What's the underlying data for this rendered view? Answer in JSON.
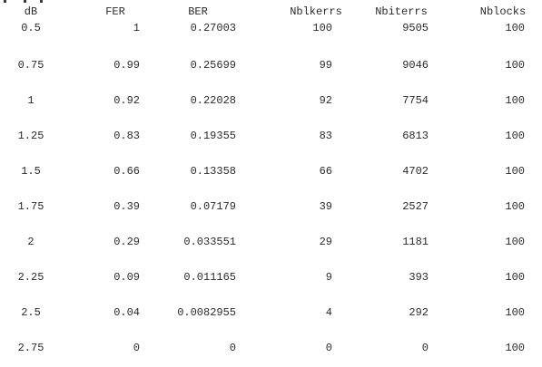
{
  "table": {
    "headers": [
      "dB",
      "FER",
      "BER",
      "Nblkerrs",
      "Nbiterrs",
      "Nblocks"
    ],
    "rows": [
      [
        "0.5",
        "1",
        "0.27003",
        "100",
        "9505",
        "100"
      ],
      [
        "0.75",
        "0.99",
        "0.25699",
        "99",
        "9046",
        "100"
      ],
      [
        "1",
        "0.92",
        "0.22028",
        "92",
        "7754",
        "100"
      ],
      [
        "1.25",
        "0.83",
        "0.19355",
        "83",
        "6813",
        "100"
      ],
      [
        "1.5",
        "0.66",
        "0.13358",
        "66",
        "4702",
        "100"
      ],
      [
        "1.75",
        "0.39",
        "0.07179",
        "39",
        "2527",
        "100"
      ],
      [
        "2",
        "0.29",
        "0.033551",
        "29",
        "1181",
        "100"
      ],
      [
        "2.25",
        "0.09",
        "0.011165",
        "9",
        "393",
        "100"
      ],
      [
        "2.5",
        "0.04",
        "0.0082955",
        "4",
        "292",
        "100"
      ],
      [
        "2.75",
        "0",
        "0",
        "0",
        "0",
        "100"
      ]
    ]
  }
}
